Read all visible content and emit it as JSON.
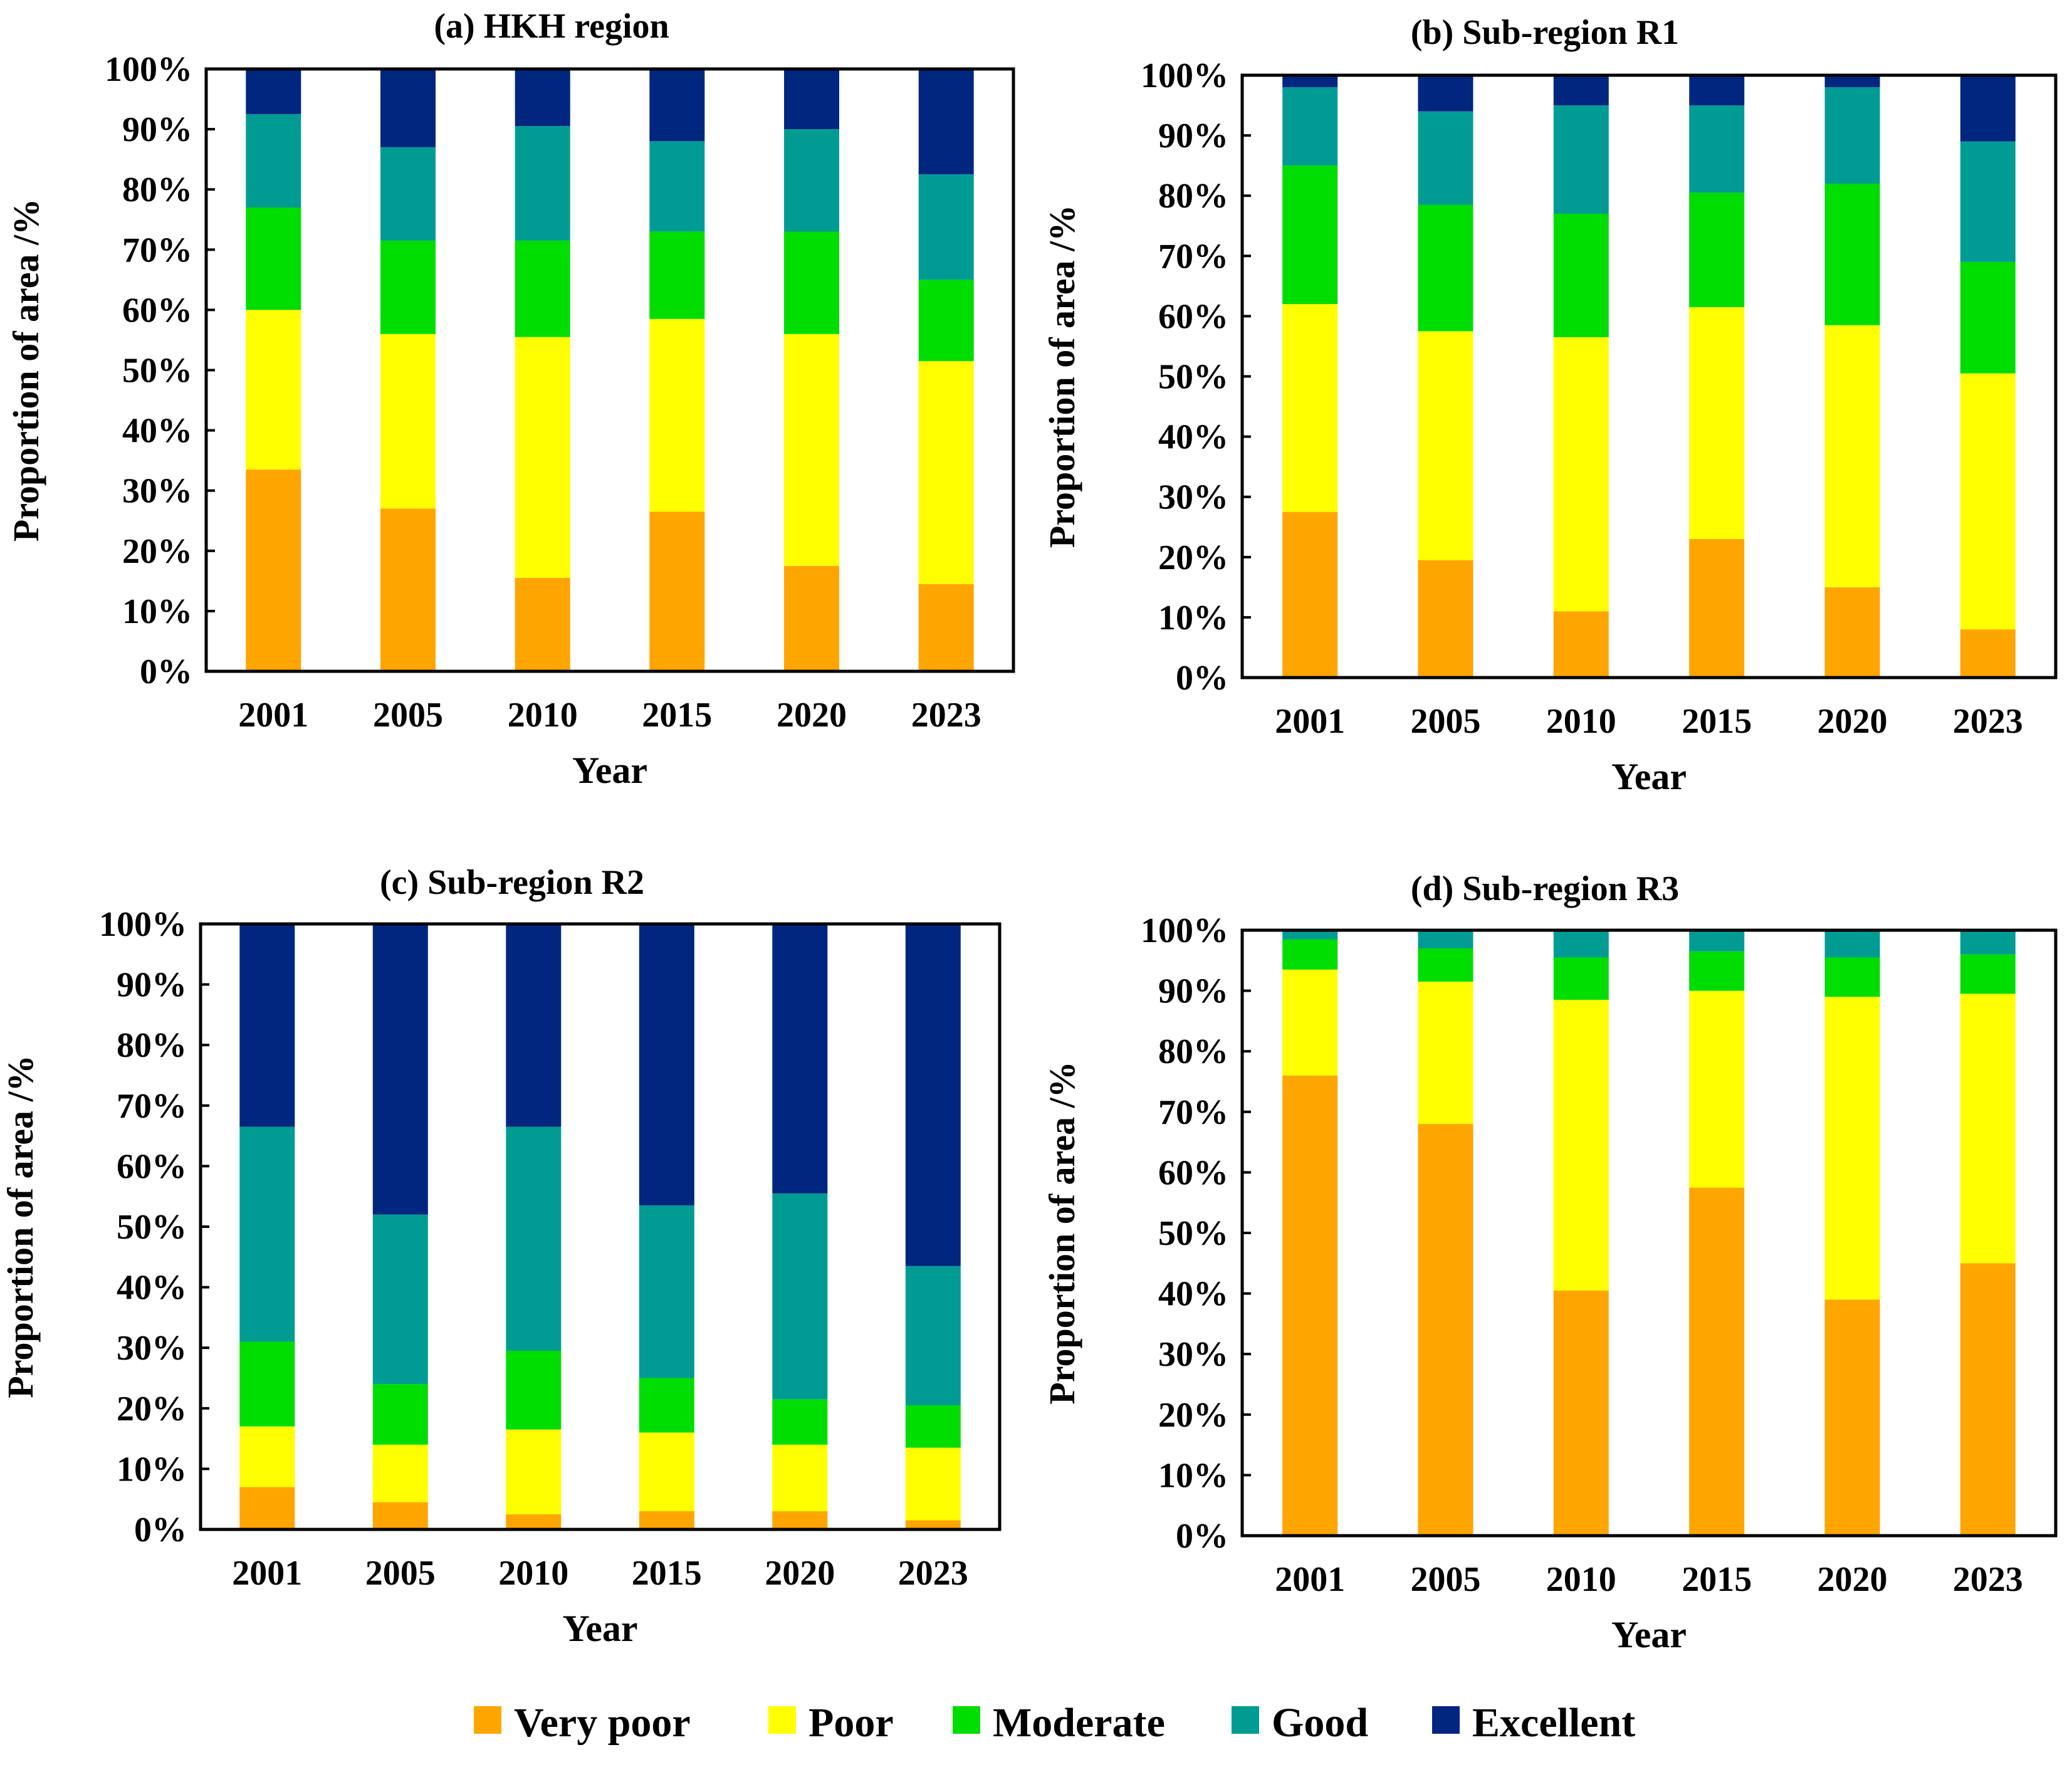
{
  "chart_data": {
    "type": "stacked-bar",
    "categories": [
      "2001",
      "2005",
      "2010",
      "2015",
      "2020",
      "2023"
    ],
    "xlabel": "Year",
    "ylabel": "Proportion of area /%",
    "ylim": [
      0,
      100
    ],
    "yticks": [
      "0%",
      "10%",
      "20%",
      "30%",
      "40%",
      "50%",
      "60%",
      "70%",
      "80%",
      "90%",
      "100%"
    ],
    "legend": {
      "position": "bottom-center",
      "entries": [
        "Very poor",
        "Poor",
        "Moderate",
        "Good",
        "Excellent"
      ]
    },
    "series_colors": {
      "Very poor": "#FFA500",
      "Poor": "#FFFF00",
      "Moderate": "#00DD00",
      "Good": "#009C94",
      "Excellent": "#002680"
    },
    "panels": [
      {
        "title": "(a) HKH region",
        "series": [
          {
            "name": "Very poor",
            "values": [
              33.5,
              27,
              15.5,
              26.5,
              17.5,
              14.5
            ]
          },
          {
            "name": "Poor",
            "values": [
              26.5,
              29,
              40,
              32,
              38.5,
              37
            ]
          },
          {
            "name": "Moderate",
            "values": [
              17,
              15.5,
              16,
              14.5,
              17,
              13.5
            ]
          },
          {
            "name": "Good",
            "values": [
              15.5,
              15.5,
              19,
              15,
              17,
              17.5
            ]
          },
          {
            "name": "Excellent",
            "values": [
              7.5,
              13,
              9.5,
              12,
              10,
              17.5
            ]
          }
        ]
      },
      {
        "title": "(b) Sub-region R1",
        "series": [
          {
            "name": "Very poor",
            "values": [
              27.5,
              19.5,
              11,
              23,
              15,
              8
            ]
          },
          {
            "name": "Poor",
            "values": [
              34.5,
              38,
              45.5,
              38.5,
              43.5,
              42.5
            ]
          },
          {
            "name": "Moderate",
            "values": [
              23,
              21,
              20.5,
              19,
              23.5,
              18.5
            ]
          },
          {
            "name": "Good",
            "values": [
              13,
              15.5,
              18,
              14.5,
              16,
              20
            ]
          },
          {
            "name": "Excellent",
            "values": [
              2,
              6,
              5,
              5,
              2,
              11
            ]
          }
        ]
      },
      {
        "title": "(c) Sub-region R2",
        "series": [
          {
            "name": "Very poor",
            "values": [
              7,
              4.5,
              2.5,
              3,
              3,
              1.5
            ]
          },
          {
            "name": "Poor",
            "values": [
              10,
              9.5,
              14,
              13,
              11,
              12
            ]
          },
          {
            "name": "Moderate",
            "values": [
              14,
              10,
              13,
              9,
              7.5,
              7
            ]
          },
          {
            "name": "Good",
            "values": [
              35.5,
              28,
              37,
              28.5,
              34,
              23
            ]
          },
          {
            "name": "Excellent",
            "values": [
              33.5,
              48,
              33.5,
              46.5,
              44.5,
              56.5
            ]
          }
        ]
      },
      {
        "title": "(d) Sub-region R3",
        "series": [
          {
            "name": "Very poor",
            "values": [
              76,
              68,
              40.5,
              57.5,
              39,
              45
            ]
          },
          {
            "name": "Poor",
            "values": [
              17.5,
              23.5,
              48,
              32.5,
              50,
              44.5
            ]
          },
          {
            "name": "Moderate",
            "values": [
              5,
              5.5,
              7,
              6.5,
              6.5,
              6.5
            ]
          },
          {
            "name": "Good",
            "values": [
              1.5,
              3,
              4.5,
              3.5,
              4.5,
              4
            ]
          },
          {
            "name": "Excellent",
            "values": [
              0,
              0,
              0,
              0,
              0,
              0
            ]
          }
        ]
      }
    ]
  }
}
